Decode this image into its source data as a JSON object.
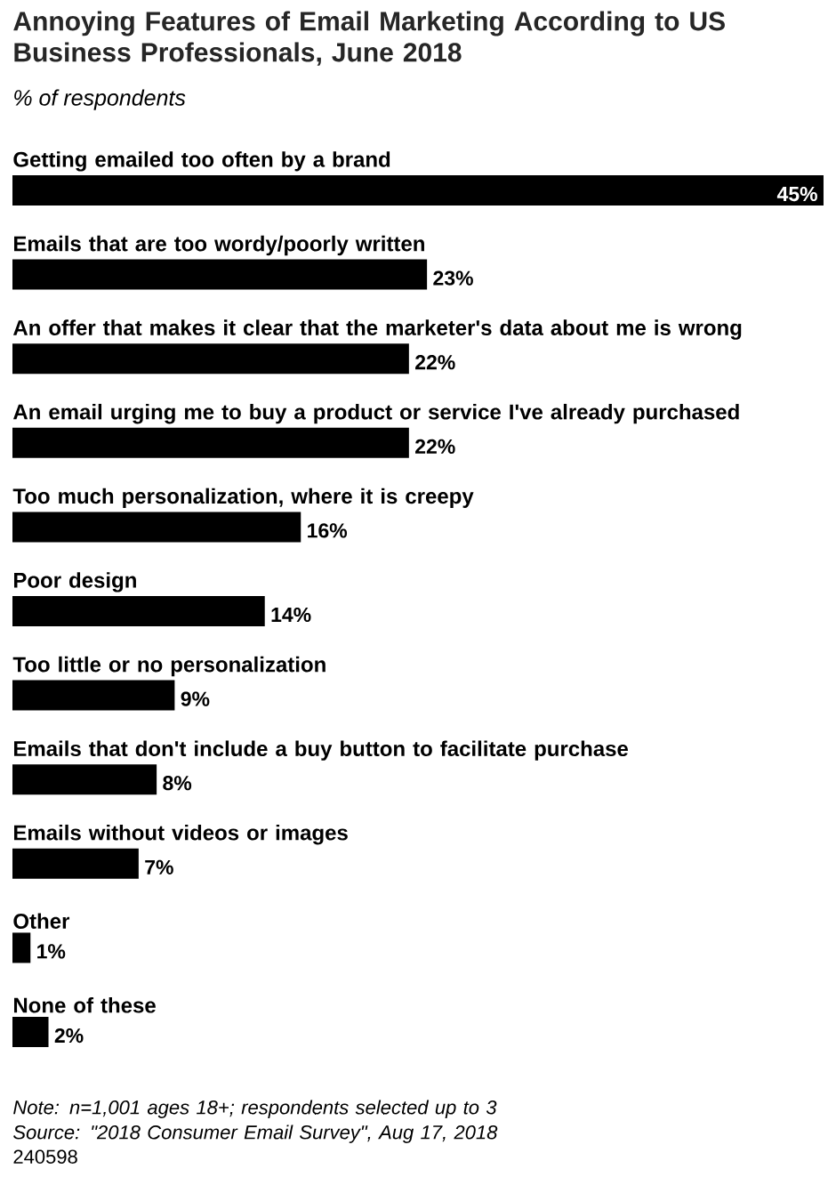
{
  "chart_data": {
    "type": "bar",
    "orientation": "horizontal",
    "title": "Annoying Features of Email Marketing According to US Business Professionals, June 2018",
    "subtitle": "% of respondents",
    "categories": [
      "Getting emailed too often by a brand",
      "Emails that are too wordy/poorly written",
      "An offer that makes it clear that the marketer's data about me is wrong",
      "An email urging me to buy a product or service I've already purchased",
      "Too much personalization, where it is creepy",
      "Poor design",
      "Too little or no personalization",
      "Emails that don't include a buy button to facilitate purchase",
      "Emails without videos or images",
      "Other",
      "None of these"
    ],
    "values": [
      45,
      23,
      22,
      22,
      16,
      14,
      9,
      8,
      7,
      1,
      2
    ],
    "value_labels": [
      "45%",
      "23%",
      "22%",
      "22%",
      "16%",
      "14%",
      "9%",
      "8%",
      "7%",
      "1%",
      "2%"
    ],
    "color": "#000000",
    "annotations": [
      "Note: n=1,001 ages 18+; respondents selected up to 3",
      "Source: \"2018 Consumer Email Survey\", Aug 17, 2018",
      "240598"
    ]
  }
}
